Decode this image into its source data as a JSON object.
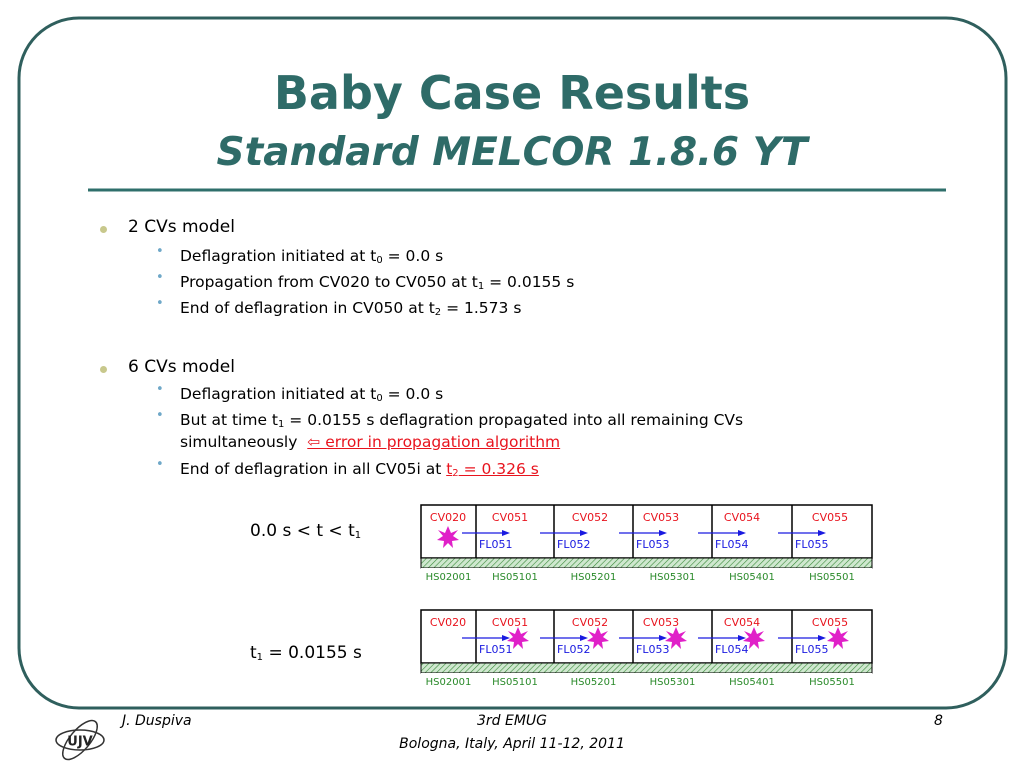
{
  "title": "Baby Case Results",
  "subtitle": "Standard MELCOR 1.8.6 YT",
  "bullets": [
    {
      "text": "2 CVs model",
      "items": [
        [
          "Deflagration initiated at t",
          "0",
          " = 0.0 s"
        ],
        [
          "Propagation from CV020 to CV050 at t",
          "1",
          " = 0.0155 s"
        ],
        [
          "End of deflagration in CV050 at t",
          "2",
          " = 1.573 s"
        ]
      ]
    },
    {
      "text": "6 CVs model",
      "items": [
        [
          "Deflagration initiated at t",
          "0",
          " = 0.0 s"
        ],
        [
          "But at time t",
          "1",
          " = 0.0155 s deflagration propagated into all remaining CVs",
          "simultaneously",
          "⇦ error in propagation algorithm"
        ],
        [
          "End of deflagration in all CV05i at ",
          "t",
          "2",
          " = 0.326 s"
        ]
      ]
    }
  ],
  "diagrams": [
    {
      "label": [
        "0.0 s < t < t",
        "1"
      ],
      "cvs": [
        "CV020",
        "CV051",
        "CV052",
        "CV053",
        "CV054",
        "CV055"
      ],
      "fls": [
        "FL051",
        "FL052",
        "FL053",
        "FL054",
        "FL055"
      ],
      "hss": [
        "HS02001",
        "HS05101",
        "HS05201",
        "HS05301",
        "HS05401",
        "HS05501"
      ]
    },
    {
      "label": [
        "t",
        "1",
        " = 0.0155 s"
      ],
      "cvs": [
        "CV020",
        "CV051",
        "CV052",
        "CV053",
        "CV054",
        "CV055"
      ],
      "fls": [
        "FL051",
        "FL052",
        "FL053",
        "FL054",
        "FL055"
      ],
      "hss": [
        "HS02001",
        "HS05101",
        "HS05201",
        "HS05301",
        "HS05401",
        "HS05501"
      ]
    }
  ],
  "footer": {
    "author": "J. Duspiva",
    "event": "3rd EMUG",
    "place": "Bologna, Italy, April 11-12, 2011",
    "page": "8",
    "logo": "UJV"
  }
}
